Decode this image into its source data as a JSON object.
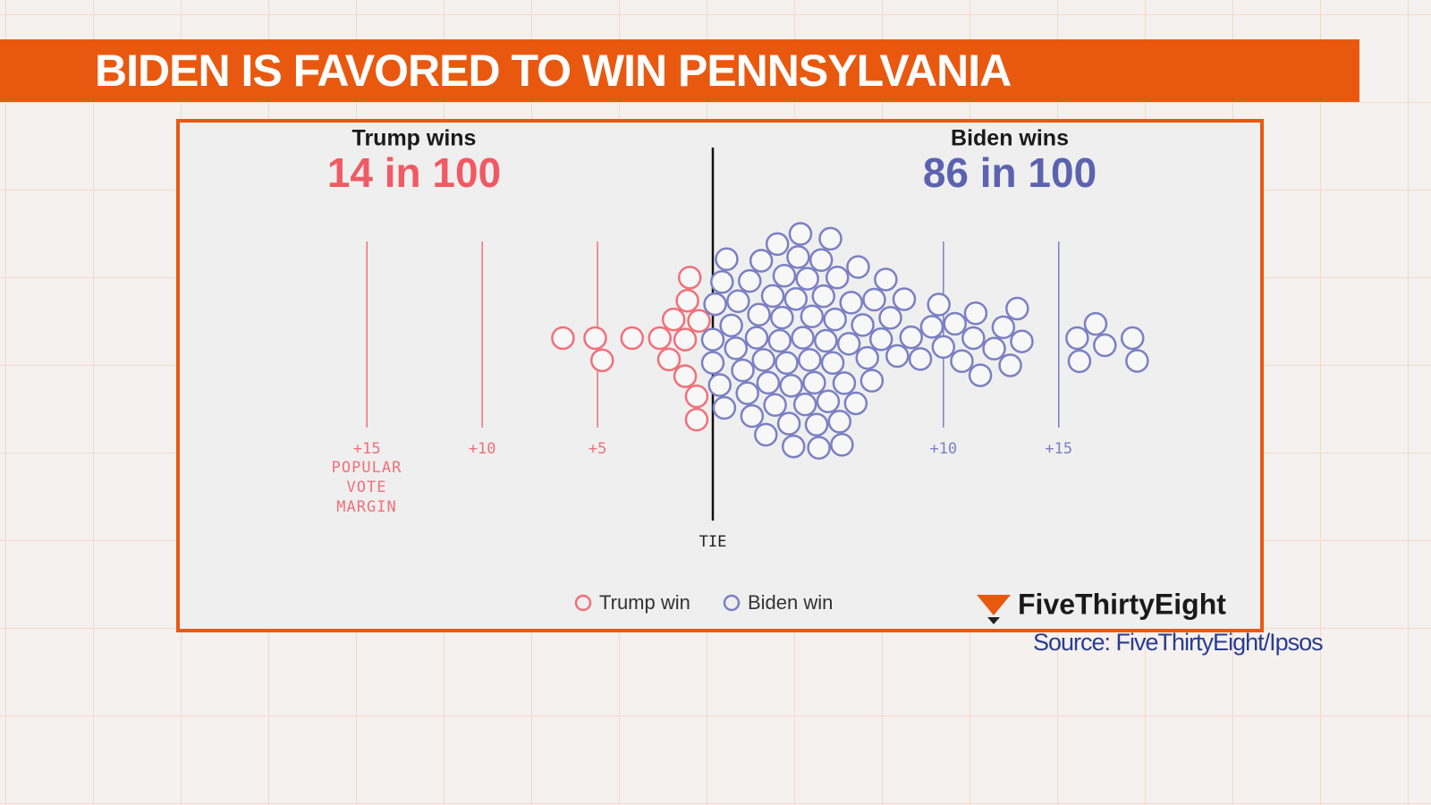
{
  "chart_data": {
    "type": "beeswarm",
    "title": "BIDEN IS FAVORED TO WIN PENNSYLVANIA",
    "xlabel": "POPULAR VOTE MARGIN",
    "xlim": [
      -23,
      23
    ],
    "xticks": [
      {
        "value": -15,
        "label": "+15"
      },
      {
        "value": -10,
        "label": "+10"
      },
      {
        "value": -5,
        "label": "+5"
      },
      {
        "value": 0,
        "label": "TIE"
      },
      {
        "value": 10,
        "label": "+10"
      },
      {
        "value": 15,
        "label": "+15"
      }
    ],
    "series": [
      {
        "name": "Trump win",
        "headline": "Trump wins",
        "odds": "14 in 100",
        "color": "#f0707a",
        "headline_color": "#f05a64",
        "values": [
          -6.5,
          -5.1,
          -4.8,
          -3.5,
          -2.3,
          -1.9,
          -1.7,
          -1.2,
          -1.2,
          -1.1,
          -1.0,
          -0.7,
          -0.7,
          -0.6
        ]
      },
      {
        "name": "Biden win",
        "headline": "Biden wins",
        "odds": "86 in 100",
        "color": "#7b80c4",
        "headline_color": "#5b63b0",
        "values": [
          0.0,
          0.0,
          0.1,
          0.3,
          0.4,
          0.5,
          0.6,
          0.8,
          1.0,
          1.1,
          1.3,
          1.5,
          1.6,
          1.7,
          1.9,
          2.0,
          2.1,
          2.2,
          2.3,
          2.4,
          2.6,
          2.7,
          2.8,
          2.9,
          3.0,
          3.1,
          3.2,
          3.3,
          3.4,
          3.5,
          3.6,
          3.7,
          3.8,
          3.9,
          4.0,
          4.1,
          4.2,
          4.3,
          4.4,
          4.5,
          4.6,
          4.7,
          4.8,
          4.9,
          5.0,
          5.1,
          5.2,
          5.3,
          5.4,
          5.5,
          5.6,
          5.7,
          5.9,
          6.0,
          6.2,
          6.3,
          6.5,
          6.7,
          6.9,
          7.0,
          7.3,
          7.5,
          7.7,
          8.0,
          8.3,
          8.6,
          9.0,
          9.5,
          9.8,
          10.0,
          10.5,
          10.8,
          11.3,
          11.4,
          11.6,
          12.2,
          12.6,
          12.9,
          13.2,
          13.4,
          15.8,
          15.9,
          16.6,
          17.0,
          18.2,
          18.4
        ]
      }
    ],
    "brand": "FiveThirtyEight",
    "source": "Source: FiveThirtyEight/Ipsos"
  }
}
